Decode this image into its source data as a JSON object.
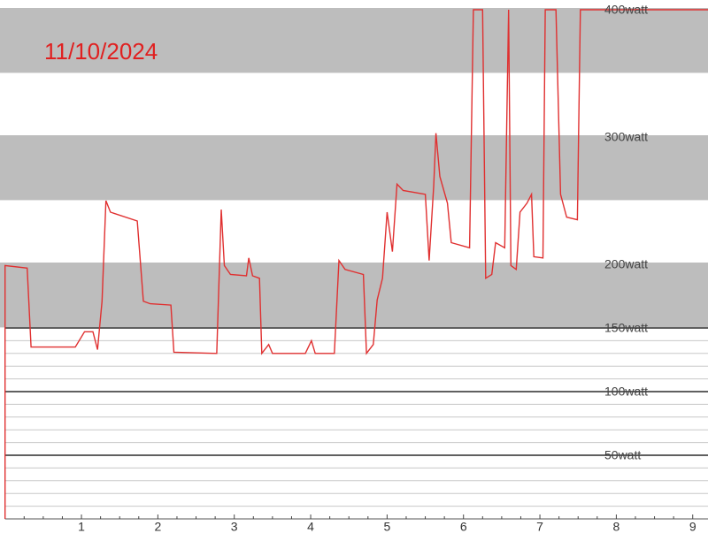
{
  "chart_data": {
    "type": "line",
    "title": "11/10/2024",
    "xlim": [
      0,
      9.2
    ],
    "ylim": [
      0,
      400
    ],
    "xticks": [
      1,
      2,
      3,
      4,
      5,
      6,
      7,
      8,
      9
    ],
    "xminorticks": [
      0.25,
      0.5,
      0.75,
      1.25,
      1.5,
      1.75,
      2.25,
      2.5,
      2.75,
      3.25,
      3.5,
      3.75,
      4.25,
      4.5,
      4.75,
      5.25,
      5.5,
      5.75,
      6.25,
      6.5,
      6.75,
      7.25,
      7.5,
      7.75,
      8.25,
      8.5,
      8.75,
      9.25
    ],
    "yticks": [
      {
        "value": 50,
        "label": "50watt"
      },
      {
        "value": 100,
        "label": "100watt"
      },
      {
        "value": 150,
        "label": "150watt"
      },
      {
        "value": 200,
        "label": "200watt"
      },
      {
        "value": 300,
        "label": "300watt"
      },
      {
        "value": 400,
        "label": "400watt"
      }
    ],
    "yminorticks": [
      10,
      20,
      30,
      40,
      60,
      70,
      80,
      90,
      110,
      120,
      130,
      140
    ],
    "bands": [
      [
        150,
        200
      ],
      [
        250,
        300
      ],
      [
        350,
        400
      ]
    ],
    "band_color": "#bdbdbd",
    "series": [
      {
        "color": "#e03030",
        "x": [
          0,
          0,
          0.29,
          0.34,
          0.92,
          1.04,
          1.15,
          1.21,
          1.27,
          1.32,
          1.38,
          1.73,
          1.81,
          1.9,
          2.17,
          2.21,
          2.77,
          2.83,
          2.87,
          2.95,
          3.16,
          3.19,
          3.24,
          3.33,
          3.36,
          3.45,
          3.5,
          3.93,
          4.01,
          4.06,
          4.31,
          4.37,
          4.45,
          4.69,
          4.73,
          4.82,
          4.87,
          4.94,
          5.0,
          5.07,
          5.13,
          5.21,
          5.5,
          5.55,
          5.61,
          5.64,
          5.69,
          5.79,
          5.84,
          6.08,
          6.13,
          6.25,
          6.29,
          6.37,
          6.42,
          6.54,
          6.59,
          6.62,
          6.69,
          6.74,
          6.83,
          6.89,
          6.92,
          7.04,
          7.07,
          7.21,
          7.27,
          7.35,
          7.49,
          7.53,
          9.2
        ],
        "values": [
          0,
          199,
          197,
          135,
          135,
          147,
          147,
          133,
          171,
          250,
          241,
          234,
          171,
          169,
          168,
          131,
          130,
          243,
          199,
          192,
          191,
          205,
          191,
          189,
          130,
          137,
          130,
          130,
          140,
          130,
          130,
          203,
          196,
          192,
          130,
          137,
          172,
          189,
          241,
          210,
          263,
          258,
          255,
          203,
          262,
          303,
          269,
          248,
          217,
          213,
          400,
          400,
          189,
          192,
          217,
          213,
          400,
          199,
          196,
          241,
          248,
          255,
          206,
          205,
          400,
          400,
          255,
          237,
          235,
          400,
          400
        ]
      }
    ]
  }
}
